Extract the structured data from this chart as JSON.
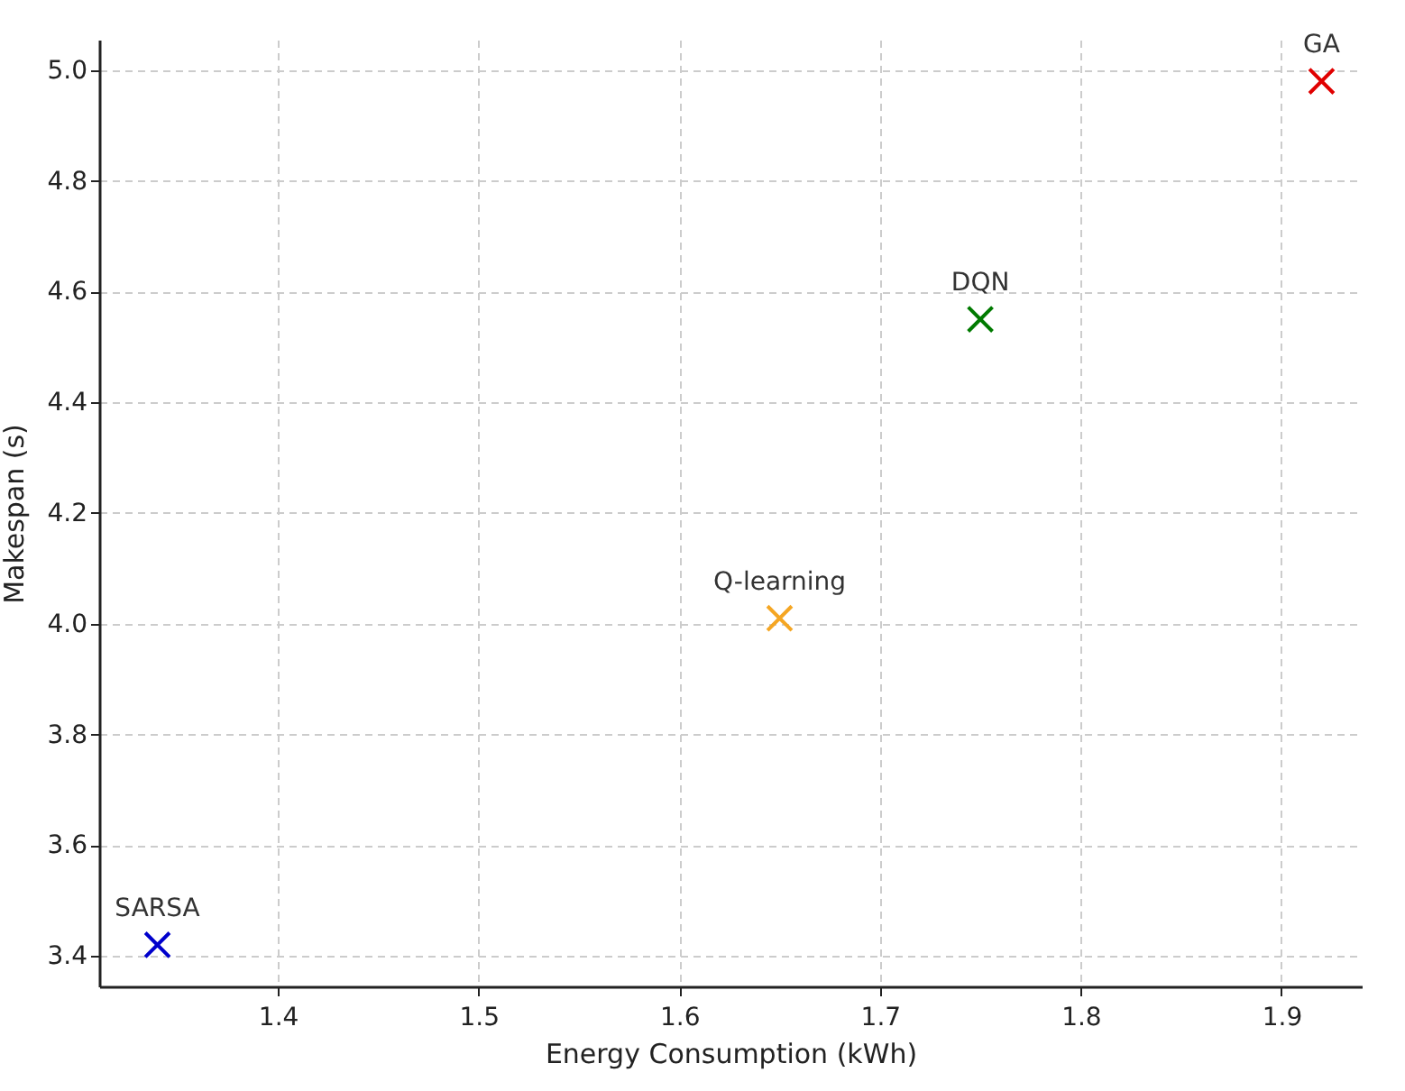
{
  "chart_data": {
    "type": "scatter",
    "xlabel": "Energy Consumption (kWh)",
    "ylabel": "Makespan (s)",
    "xlim": [
      1.311,
      1.94
    ],
    "xticks": [
      1.4,
      1.5,
      1.6,
      1.7,
      1.8,
      1.9
    ],
    "ylim": [
      3.345,
      5.055
    ],
    "yticks": [
      3.4,
      3.6,
      3.8,
      {
        "value": 4,
        "label": "4.0"
      },
      4.2,
      4.4,
      4.6,
      4.8,
      {
        "value": 5,
        "label": "5.0"
      }
    ],
    "grid": true,
    "legend": false,
    "marker": "cross",
    "series": [
      {
        "name": "SARSA",
        "color": "#0000cc",
        "x": [
          1.34
        ],
        "values": [
          3.42
        ]
      },
      {
        "name": "Q-learning",
        "color": "#f5a623",
        "x": [
          1.65
        ],
        "values": [
          4.01
        ]
      },
      {
        "name": "DQN",
        "color": "#007a00",
        "x": [
          1.75
        ],
        "values": [
          4.55
        ]
      },
      {
        "name": "GA",
        "color": "#e00000",
        "x": [
          1.92
        ],
        "values": [
          4.98
        ]
      }
    ]
  }
}
